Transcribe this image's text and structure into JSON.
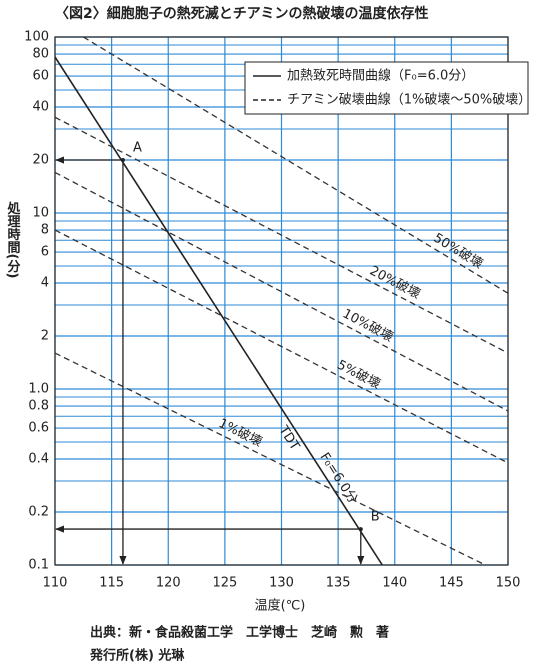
{
  "chart_data": {
    "type": "line",
    "title": "〈図2〉細胞胞子の熱死滅とチアミンの熱破壊の温度依存性",
    "x_label": "温度(℃)",
    "y_label": "処理時間(分)",
    "source": [
      "出典：新・食品殺菌工学　工学博士　芝崎　勲　著",
      "発行所(株) 光琳"
    ],
    "xlim": [
      110,
      150
    ],
    "xticks": [
      110,
      115,
      120,
      125,
      130,
      135,
      140,
      145,
      150
    ],
    "ylim": [
      0.1,
      100
    ],
    "log_y": true,
    "yticks": [
      100,
      80,
      60,
      40,
      20,
      10,
      8,
      6,
      4,
      2,
      {
        "value": 1,
        "label": "1.0"
      },
      0.8,
      0.6,
      0.4,
      0.2,
      0.1
    ],
    "y_minor_grid": [
      90,
      70,
      50,
      30,
      9,
      7,
      5,
      3,
      0.9,
      0.7,
      0.5,
      0.3
    ],
    "grid": true,
    "grid_color": "#2e8ad6",
    "legend": [
      {
        "label": "加熱致死時間曲線（F₀=6.0分）",
        "dash": false
      },
      {
        "label": "チアミン破壊曲線（1%破壊〜50%破壊）",
        "dash": true
      }
    ],
    "series": [
      {
        "name": "TDT",
        "annotation": "F₀=6.0分",
        "color": "#222222",
        "dash": false,
        "x": [
          110,
          138.9
        ],
        "values": [
          77,
          0.1
        ]
      },
      {
        "name": "50%破壊",
        "color": "#333333",
        "dash": true,
        "x": [
          112.5,
          150
        ],
        "values": [
          100,
          3.5
        ]
      },
      {
        "name": "20%破壊",
        "color": "#333333",
        "dash": true,
        "x": [
          110,
          150
        ],
        "values": [
          35,
          1.6
        ]
      },
      {
        "name": "10%破壊",
        "color": "#333333",
        "dash": true,
        "x": [
          110,
          150
        ],
        "values": [
          17,
          0.75
        ]
      },
      {
        "name": "5%破壊",
        "color": "#333333",
        "dash": true,
        "x": [
          110,
          150
        ],
        "values": [
          8,
          0.38
        ]
      },
      {
        "name": "1%破壊",
        "color": "#333333",
        "dash": true,
        "x": [
          110,
          148
        ],
        "values": [
          1.6,
          0.1
        ]
      }
    ],
    "points": [
      {
        "label": "A",
        "x": 116,
        "y": 20
      },
      {
        "label": "B",
        "x": 137,
        "y": 0.16
      }
    ]
  }
}
